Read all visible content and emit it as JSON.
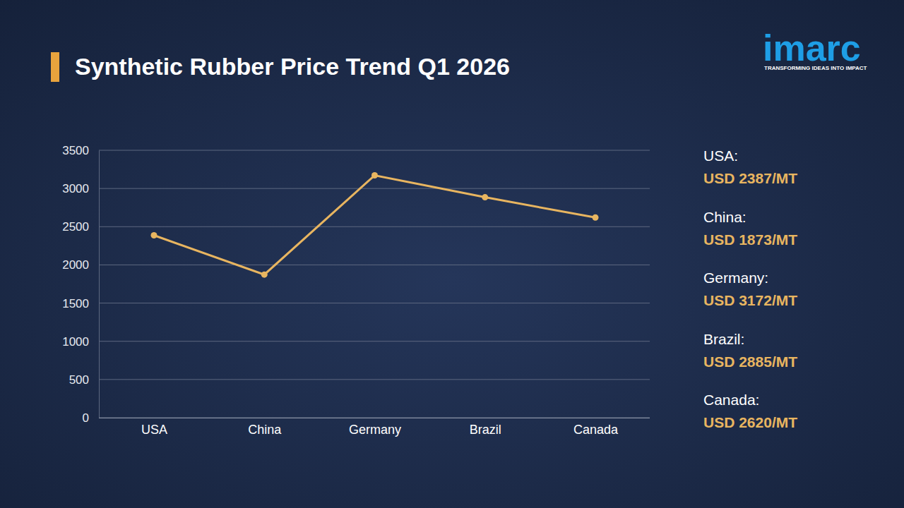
{
  "chart_data": {
    "type": "line",
    "title": "Synthetic Rubber Price Trend Q1 2026",
    "categories": [
      "USA",
      "China",
      "Germany",
      "Brazil",
      "Canada"
    ],
    "values": [
      2387,
      1873,
      3172,
      2885,
      2620
    ],
    "value_labels": [
      "USD 2387/MT",
      "USD 1873/MT",
      "USD 3172/MT",
      "USD 2885/MT",
      "USD 2620/MT"
    ],
    "side_labels": [
      "USA:",
      "China:",
      "Germany:",
      "Brazil:",
      "Canada:"
    ],
    "color": "#e8b560",
    "marker": "circle",
    "ylim": [
      0,
      3500
    ],
    "yticks": [
      0,
      500,
      1000,
      1500,
      2000,
      2500,
      3000,
      3500
    ],
    "grid": true
  },
  "logo": {
    "name": "imarc",
    "tagline": "TRANSFORMING IDEAS INTO IMPACT"
  }
}
